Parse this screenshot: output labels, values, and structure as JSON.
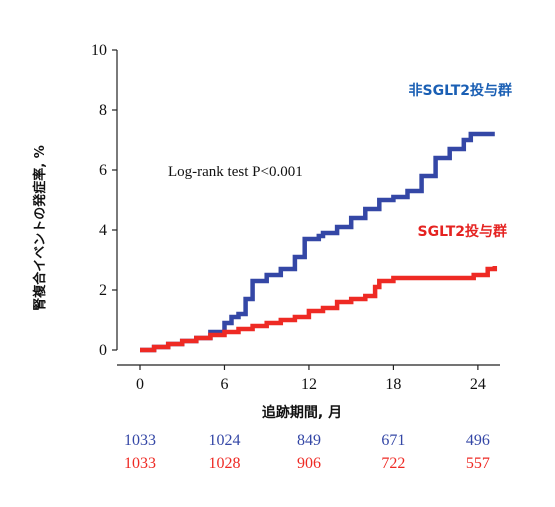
{
  "chart_data": {
    "type": "line",
    "title": "",
    "xlabel": "追跡期間, 月",
    "ylabel": "腎複合イベントの発症率, %",
    "xlim": [
      0,
      25.5
    ],
    "ylim": [
      0,
      10
    ],
    "x_ticks": [
      "0",
      "6",
      "12",
      "18",
      "24"
    ],
    "y_ticks": [
      "0",
      "2",
      "4",
      "6",
      "8",
      "10"
    ],
    "grid": false,
    "annotation": "Log-rank test P<0.001",
    "series": [
      {
        "name": "非SGLT2投与群",
        "color": "#3447a6",
        "label_color": "#1a5fb4",
        "points": [
          [
            0,
            0.0
          ],
          [
            1,
            0.1
          ],
          [
            2,
            0.2
          ],
          [
            3,
            0.3
          ],
          [
            4,
            0.4
          ],
          [
            5,
            0.6
          ],
          [
            6,
            0.9
          ],
          [
            6.5,
            1.1
          ],
          [
            7,
            1.2
          ],
          [
            7.5,
            1.7
          ],
          [
            8,
            2.3
          ],
          [
            9,
            2.5
          ],
          [
            10,
            2.7
          ],
          [
            11,
            3.1
          ],
          [
            11.7,
            3.7
          ],
          [
            12.7,
            3.8
          ],
          [
            13,
            3.9
          ],
          [
            14,
            4.1
          ],
          [
            15,
            4.4
          ],
          [
            16,
            4.7
          ],
          [
            17,
            5.0
          ],
          [
            18,
            5.1
          ],
          [
            19,
            5.3
          ],
          [
            20,
            5.8
          ],
          [
            21,
            6.4
          ],
          [
            22,
            6.7
          ],
          [
            23,
            7.0
          ],
          [
            23.5,
            7.2
          ],
          [
            25.2,
            7.2
          ]
        ]
      },
      {
        "name": "SGLT2投与群",
        "color": "#ee2a24",
        "label_color": "#e52321",
        "points": [
          [
            0,
            0.0
          ],
          [
            1,
            0.1
          ],
          [
            2,
            0.2
          ],
          [
            3,
            0.3
          ],
          [
            4,
            0.4
          ],
          [
            5,
            0.5
          ],
          [
            6,
            0.6
          ],
          [
            7,
            0.7
          ],
          [
            8,
            0.8
          ],
          [
            9,
            0.9
          ],
          [
            10,
            1.0
          ],
          [
            11,
            1.1
          ],
          [
            12,
            1.3
          ],
          [
            13,
            1.4
          ],
          [
            14,
            1.6
          ],
          [
            15,
            1.7
          ],
          [
            16,
            1.8
          ],
          [
            16.7,
            2.1
          ],
          [
            17,
            2.3
          ],
          [
            18,
            2.4
          ],
          [
            23,
            2.4
          ],
          [
            23.7,
            2.5
          ],
          [
            24.7,
            2.7
          ],
          [
            25.2,
            2.8
          ]
        ]
      }
    ],
    "risk_table": {
      "x": [
        0,
        6,
        12,
        18,
        24
      ],
      "rows": [
        {
          "series": "非SGLT2投与群",
          "values": [
            "1033",
            "1024",
            "849",
            "671",
            "496"
          ]
        },
        {
          "series": "SGLT2投与群",
          "values": [
            "1033",
            "1028",
            "906",
            "722",
            "557"
          ]
        }
      ]
    }
  }
}
